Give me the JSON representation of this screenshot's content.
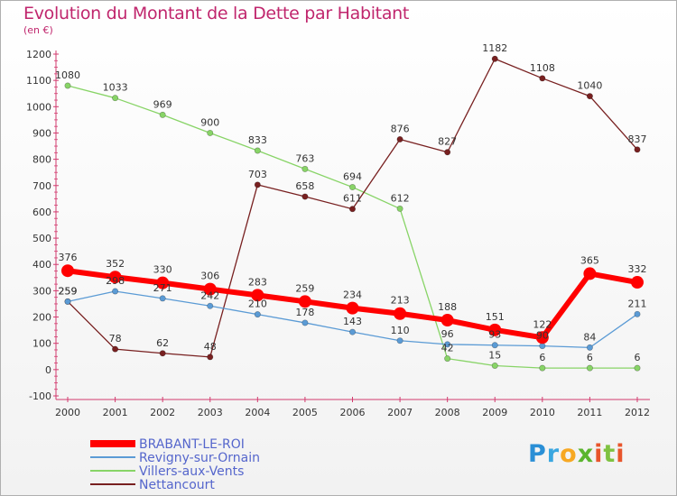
{
  "chart_data": {
    "type": "line",
    "title": "Evolution du Montant de la Dette par Habitant",
    "subtitle": "(en €)",
    "x": [
      "2000",
      "2001",
      "2002",
      "2003",
      "2004",
      "2005",
      "2006",
      "2007",
      "2008",
      "2009",
      "2010",
      "2011",
      "2012"
    ],
    "ylim": [
      -100,
      1200
    ],
    "yticks": [
      -100,
      0,
      100,
      200,
      300,
      400,
      500,
      600,
      700,
      800,
      900,
      1000,
      1100,
      1200
    ],
    "grid": false,
    "legend_position": "bottom-left",
    "series": [
      {
        "name": "Villers-aux-Vents",
        "color": "#88d467",
        "width": 1.3,
        "dot": 3.2,
        "values": [
          1080,
          1033,
          969,
          900,
          833,
          763,
          694,
          612,
          42,
          15,
          6,
          6,
          6
        ]
      },
      {
        "name": "Nettancourt",
        "color": "#782020",
        "width": 1.3,
        "dot": 3.2,
        "values": [
          259,
          78,
          62,
          48,
          703,
          658,
          611,
          876,
          827,
          1182,
          1108,
          1040,
          837
        ]
      },
      {
        "name": "Revigny-sur-Ornain",
        "color": "#5b9bd5",
        "width": 1.3,
        "dot": 3.2,
        "values": [
          259,
          298,
          271,
          242,
          210,
          178,
          143,
          110,
          96,
          93,
          90,
          84,
          211
        ]
      },
      {
        "name": "BRABANT-LE-ROI",
        "color": "#ff0000",
        "width": 6,
        "dot": 7,
        "values": [
          376,
          352,
          330,
          306,
          283,
          259,
          234,
          213,
          188,
          151,
          122,
          365,
          332
        ]
      }
    ],
    "labels": [
      {
        "series": 0,
        "i": 0,
        "text": "1080",
        "pos": "above"
      },
      {
        "series": 0,
        "i": 1,
        "text": "1033",
        "pos": "above"
      },
      {
        "series": 0,
        "i": 2,
        "text": "969",
        "pos": "above"
      },
      {
        "series": 0,
        "i": 3,
        "text": "900",
        "pos": "above"
      },
      {
        "series": 0,
        "i": 4,
        "text": "833",
        "pos": "above"
      },
      {
        "series": 0,
        "i": 5,
        "text": "763",
        "pos": "above"
      },
      {
        "series": 0,
        "i": 6,
        "text": "694",
        "pos": "above"
      },
      {
        "series": 0,
        "i": 7,
        "text": "612",
        "pos": "above"
      },
      {
        "series": 0,
        "i": 8,
        "text": "42",
        "pos": "above"
      },
      {
        "series": 0,
        "i": 9,
        "text": "15",
        "pos": "above"
      },
      {
        "series": 0,
        "i": 10,
        "text": "6",
        "pos": "above"
      },
      {
        "series": 0,
        "i": 11,
        "text": "6",
        "pos": "above"
      },
      {
        "series": 0,
        "i": 12,
        "text": "6",
        "pos": "above"
      },
      {
        "series": 1,
        "i": 0,
        "text": "259",
        "pos": "above"
      },
      {
        "series": 1,
        "i": 1,
        "text": "78",
        "pos": "above"
      },
      {
        "series": 1,
        "i": 2,
        "text": "62",
        "pos": "above"
      },
      {
        "series": 1,
        "i": 3,
        "text": "48",
        "pos": "above"
      },
      {
        "series": 1,
        "i": 4,
        "text": "703",
        "pos": "above"
      },
      {
        "series": 1,
        "i": 5,
        "text": "658",
        "pos": "above"
      },
      {
        "series": 1,
        "i": 6,
        "text": "611",
        "pos": "above"
      },
      {
        "series": 1,
        "i": 7,
        "text": "876",
        "pos": "above"
      },
      {
        "series": 1,
        "i": 8,
        "text": "827",
        "pos": "above"
      },
      {
        "series": 1,
        "i": 9,
        "text": "1182",
        "pos": "above"
      },
      {
        "series": 1,
        "i": 10,
        "text": "1108",
        "pos": "above"
      },
      {
        "series": 1,
        "i": 11,
        "text": "1040",
        "pos": "above"
      },
      {
        "series": 1,
        "i": 12,
        "text": "837",
        "pos": "above"
      },
      {
        "series": 2,
        "i": 0,
        "text": "259",
        "pos": "above"
      },
      {
        "series": 2,
        "i": 1,
        "text": "298",
        "pos": "above"
      },
      {
        "series": 2,
        "i": 2,
        "text": "271",
        "pos": "above"
      },
      {
        "series": 2,
        "i": 3,
        "text": "242",
        "pos": "above"
      },
      {
        "series": 2,
        "i": 4,
        "text": "210",
        "pos": "above"
      },
      {
        "series": 2,
        "i": 5,
        "text": "178",
        "pos": "above"
      },
      {
        "series": 2,
        "i": 6,
        "text": "143",
        "pos": "above"
      },
      {
        "series": 2,
        "i": 7,
        "text": "110",
        "pos": "above"
      },
      {
        "series": 2,
        "i": 8,
        "text": "96",
        "pos": "above"
      },
      {
        "series": 2,
        "i": 9,
        "text": "93",
        "pos": "above"
      },
      {
        "series": 2,
        "i": 10,
        "text": "90",
        "pos": "above"
      },
      {
        "series": 2,
        "i": 11,
        "text": "84",
        "pos": "above"
      },
      {
        "series": 2,
        "i": 12,
        "text": "211",
        "pos": "above"
      },
      {
        "series": 3,
        "i": 0,
        "text": "376",
        "pos": "above"
      },
      {
        "series": 3,
        "i": 1,
        "text": "352",
        "pos": "above"
      },
      {
        "series": 3,
        "i": 2,
        "text": "330",
        "pos": "above"
      },
      {
        "series": 3,
        "i": 3,
        "text": "306",
        "pos": "above"
      },
      {
        "series": 3,
        "i": 4,
        "text": "283",
        "pos": "above"
      },
      {
        "series": 3,
        "i": 5,
        "text": "259",
        "pos": "above"
      },
      {
        "series": 3,
        "i": 6,
        "text": "234",
        "pos": "above"
      },
      {
        "series": 3,
        "i": 7,
        "text": "213",
        "pos": "above"
      },
      {
        "series": 3,
        "i": 8,
        "text": "188",
        "pos": "above"
      },
      {
        "series": 3,
        "i": 9,
        "text": "151",
        "pos": "above"
      },
      {
        "series": 3,
        "i": 10,
        "text": "122",
        "pos": "above"
      },
      {
        "series": 3,
        "i": 11,
        "text": "365",
        "pos": "above"
      },
      {
        "series": 3,
        "i": 12,
        "text": "332",
        "pos": "above"
      }
    ],
    "legend_order": [
      3,
      2,
      0,
      1
    ]
  },
  "logo": {
    "letters": [
      "P",
      "r",
      "o",
      "x",
      "i",
      "t",
      "i"
    ]
  }
}
